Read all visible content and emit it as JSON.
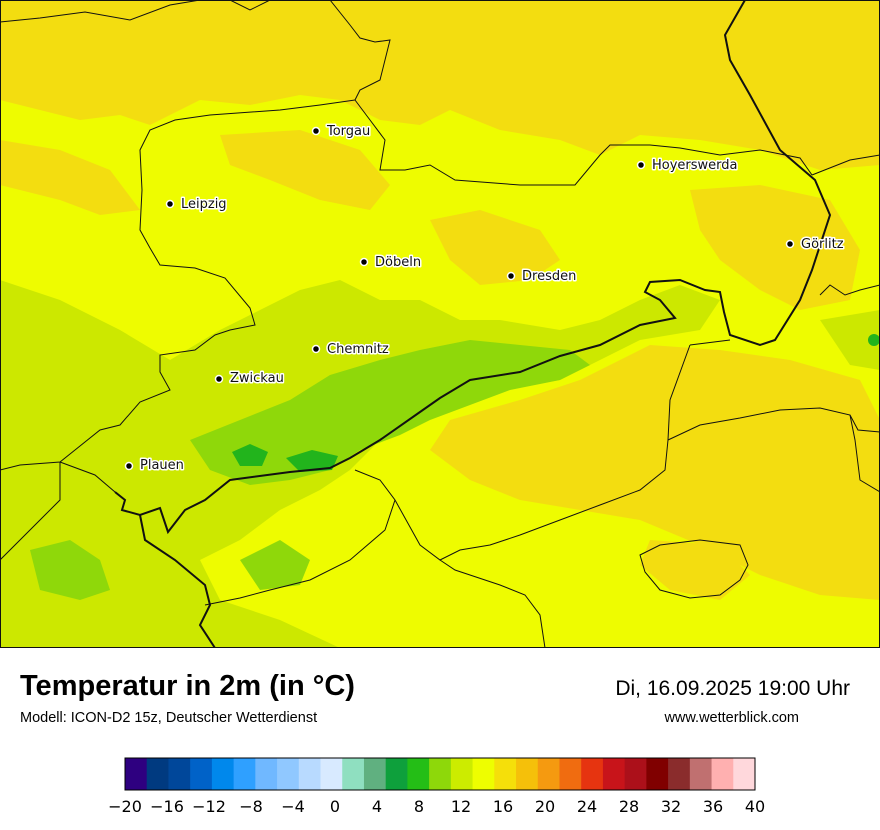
{
  "map": {
    "colors": {
      "base_yellow": "#eefc00",
      "warm_yellow": "#f3dd10",
      "light_green": "#cce800",
      "mid_green": "#8fd80a",
      "dark_green": "#22b41c",
      "border": "#111111"
    },
    "cities": [
      {
        "name": "Torgau"
      },
      {
        "name": "Hoyerswerda"
      },
      {
        "name": "Leipzig"
      },
      {
        "name": "Görlitz"
      },
      {
        "name": "Döbeln"
      },
      {
        "name": "Dresden"
      },
      {
        "name": "Chemnitz"
      },
      {
        "name": "Zwickau"
      },
      {
        "name": "Plauen"
      }
    ]
  },
  "footer": {
    "title": "Temperatur in 2m (in °C)",
    "model": "Modell: ICON-D2 15z, Deutscher Wetterdienst",
    "datetime": "Di, 16.09.2025 19:00 Uhr",
    "website": "www.wetterblick.com"
  },
  "legend": {
    "min": -20,
    "max": 40,
    "step": 2,
    "tick_labels": [
      "−20",
      "−16",
      "−12",
      "−8",
      "−4",
      "0",
      "4",
      "8",
      "12",
      "16",
      "20",
      "24",
      "28",
      "32",
      "36",
      "40"
    ],
    "colors": [
      "#2e0080",
      "#003a80",
      "#00479a",
      "#0062c8",
      "#0088ec",
      "#2fa0ff",
      "#70b8ff",
      "#90c8ff",
      "#b8daff",
      "#d8eaff",
      "#8fdfc0",
      "#60b080",
      "#0ea03c",
      "#24be16",
      "#8ed80a",
      "#ccec00",
      "#eefe00",
      "#f5df0a",
      "#f5c00a",
      "#f59a10",
      "#f06c10",
      "#e63410",
      "#c8141a",
      "#ac101a",
      "#800000",
      "#8a2c2c",
      "#c07070",
      "#ffb0b0",
      "#ffd8dc"
    ]
  }
}
